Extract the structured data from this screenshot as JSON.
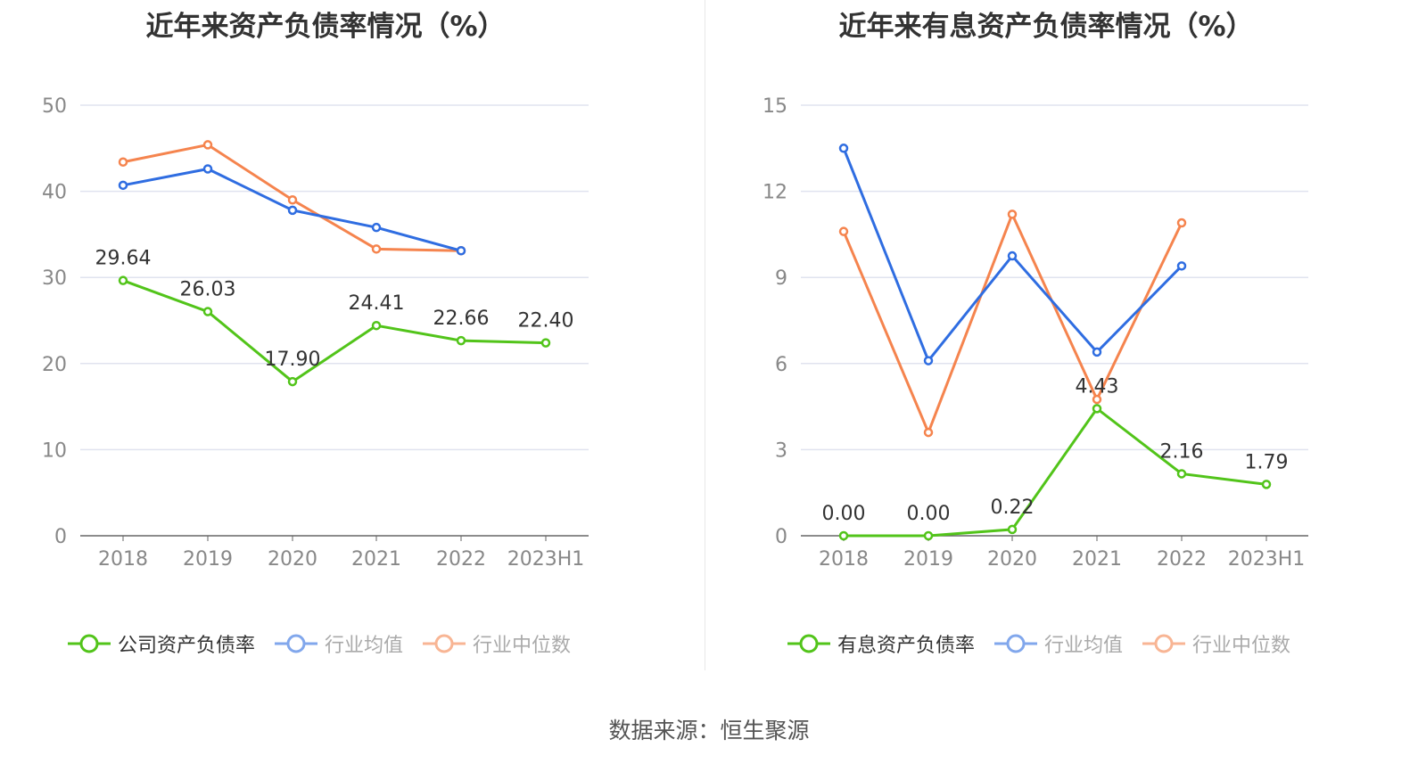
{
  "source": "数据来源：恒生聚源",
  "chart_data": [
    {
      "type": "line",
      "title": "近年来资产负债率情况（%）",
      "categories": [
        "2018",
        "2019",
        "2020",
        "2021",
        "2022",
        "2023H1"
      ],
      "ylim": [
        0,
        50
      ],
      "yticks": [
        0,
        10,
        20,
        30,
        40,
        50
      ],
      "grid": true,
      "legend_position": "bottom",
      "series": [
        {
          "name": "公司资产负债率",
          "color": "#52c41a",
          "values": [
            29.64,
            26.03,
            17.9,
            24.41,
            22.66,
            22.4
          ],
          "labels": [
            "29.64",
            "26.03",
            "17.90",
            "24.41",
            "22.66",
            "22.40"
          ]
        },
        {
          "name": "行业均值",
          "color": "#2f6de1",
          "values": [
            40.7,
            42.6,
            37.8,
            35.8,
            33.1,
            null
          ]
        },
        {
          "name": "行业中位数",
          "color": "#f5844e",
          "values": [
            43.4,
            45.4,
            39.0,
            33.3,
            33.1,
            null
          ]
        }
      ]
    },
    {
      "type": "line",
      "title": "近年来有息资产负债率情况（%）",
      "categories": [
        "2018",
        "2019",
        "2020",
        "2021",
        "2022",
        "2023H1"
      ],
      "ylim": [
        0,
        15
      ],
      "yticks": [
        0,
        3,
        6,
        9,
        12,
        15
      ],
      "grid": true,
      "legend_position": "bottom",
      "series": [
        {
          "name": "有息资产负债率",
          "color": "#52c41a",
          "values": [
            0.0,
            0.0,
            0.22,
            4.43,
            2.16,
            1.79
          ],
          "labels": [
            "0.00",
            "0.00",
            "0.22",
            "4.43",
            "2.16",
            "1.79"
          ]
        },
        {
          "name": "行业均值",
          "color": "#2f6de1",
          "values": [
            13.5,
            6.1,
            9.75,
            6.4,
            9.4,
            null
          ]
        },
        {
          "name": "行业中位数",
          "color": "#f5844e",
          "values": [
            10.6,
            3.6,
            11.2,
            4.75,
            10.9,
            null
          ]
        }
      ]
    }
  ]
}
